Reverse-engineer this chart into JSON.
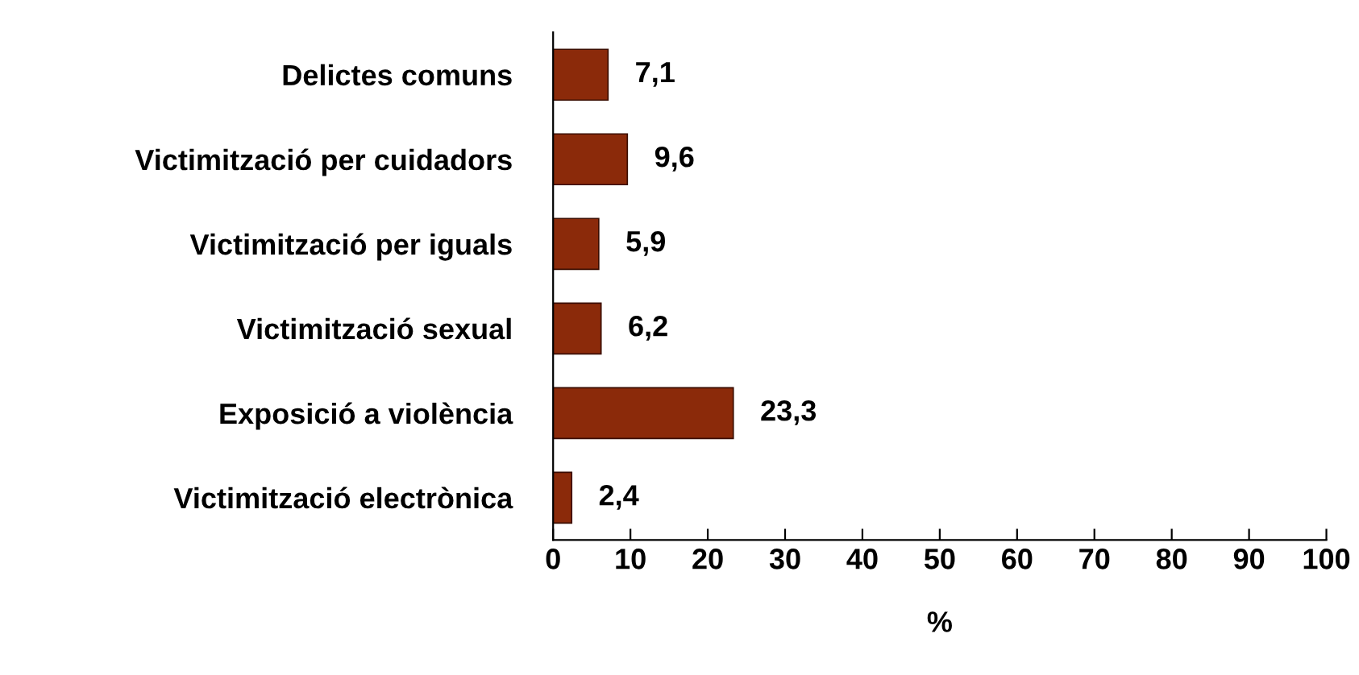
{
  "chart_data": {
    "type": "bar",
    "orientation": "horizontal",
    "xlabel": "%",
    "categories": [
      "Delictes comuns",
      "Victimització per cuidadors",
      "Victimització per iguals",
      "Victimització sexual",
      "Exposició a violència",
      "Victimització electrònica"
    ],
    "values": [
      7.1,
      9.6,
      5.9,
      6.2,
      23.3,
      2.4
    ],
    "value_labels": [
      "7,1",
      "9,6",
      "5,9",
      "6,2",
      "23,3",
      "2,4"
    ],
    "color": "#8b2a0a",
    "xlim": [
      0,
      100
    ],
    "xticks": [
      0,
      10,
      20,
      30,
      40,
      50,
      60,
      70,
      80,
      90,
      100
    ],
    "grid": false,
    "legend": false
  }
}
